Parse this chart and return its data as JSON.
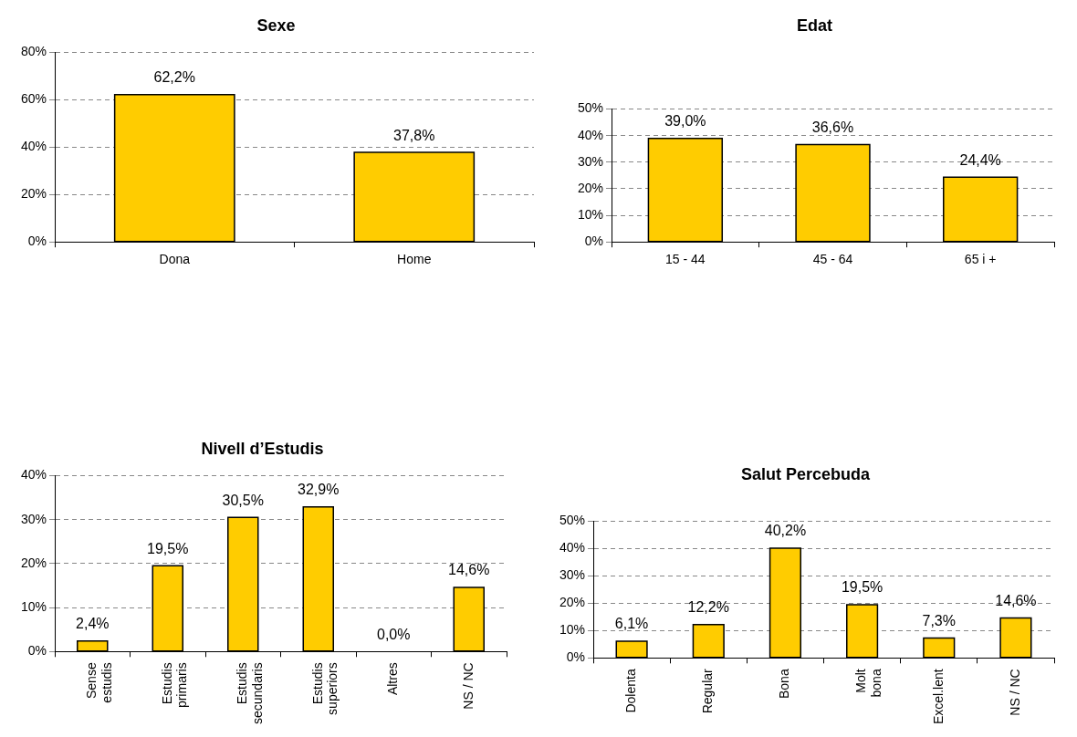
{
  "chart_data": [
    {
      "type": "bar",
      "title": "Sexe",
      "categories": [
        "Dona",
        "Home"
      ],
      "values": [
        62.2,
        37.8
      ],
      "color": "#ffcc00",
      "value_labels": [
        "62,2%",
        "37,8%"
      ],
      "ylim": [
        0,
        80
      ],
      "yticks": [
        {
          "value": 0,
          "label": "0%"
        },
        {
          "value": 20,
          "label": "20%"
        },
        {
          "value": 40,
          "label": "40%"
        },
        {
          "value": 60,
          "label": "60%"
        },
        {
          "value": 80,
          "label": "80%"
        }
      ],
      "grid": "y"
    },
    {
      "type": "bar",
      "title": "Edat",
      "categories": [
        "15 - 44",
        "45 - 64",
        "65 i +"
      ],
      "values": [
        39.0,
        36.6,
        24.4
      ],
      "color": "#ffcc00",
      "value_labels": [
        "39,0%",
        "36,6%",
        "24,4%"
      ],
      "ylim": [
        0,
        50
      ],
      "yticks": [
        {
          "value": 0,
          "label": "0%"
        },
        {
          "value": 10,
          "label": "10%"
        },
        {
          "value": 20,
          "label": "20%"
        },
        {
          "value": 30,
          "label": "30%"
        },
        {
          "value": 40,
          "label": "40%"
        },
        {
          "value": 50,
          "label": "50%"
        }
      ],
      "grid": "y"
    },
    {
      "type": "bar",
      "title": "Nivell d’Estudis",
      "categories": [
        "Sense\nestudis",
        "Estudis\nprimaris",
        "Estudis\nsecundaris",
        "Estudis\nsuperiors",
        "Altres",
        "NS / NC"
      ],
      "values": [
        2.4,
        19.5,
        30.5,
        32.9,
        0.0,
        14.6
      ],
      "color": "#ffcc00",
      "value_labels": [
        "2,4%",
        "19,5%",
        "30,5%",
        "32,9%",
        "0,0%",
        "14,6%"
      ],
      "ylim": [
        0,
        40
      ],
      "yticks": [
        {
          "value": 0,
          "label": "0%"
        },
        {
          "value": 10,
          "label": "10%"
        },
        {
          "value": 20,
          "label": "20%"
        },
        {
          "value": 30,
          "label": "30%"
        },
        {
          "value": 40,
          "label": "40%"
        }
      ],
      "grid": "y"
    },
    {
      "type": "bar",
      "title": "Salut Percebuda",
      "categories": [
        "Dolenta",
        "Regular",
        "Bona",
        "Molt\nbona",
        "Excel.lent",
        "NS / NC"
      ],
      "values": [
        6.1,
        12.2,
        40.2,
        19.5,
        7.3,
        14.6
      ],
      "color": "#ffcc00",
      "value_labels": [
        "6,1%",
        "12,2%",
        "40,2%",
        "19,5%",
        "7,3%",
        "14,6%"
      ],
      "ylim": [
        0,
        50
      ],
      "yticks": [
        {
          "value": 0,
          "label": "0%"
        },
        {
          "value": 10,
          "label": "10%"
        },
        {
          "value": 20,
          "label": "20%"
        },
        {
          "value": 30,
          "label": "30%"
        },
        {
          "value": 40,
          "label": "40%"
        },
        {
          "value": 50,
          "label": "50%"
        }
      ],
      "grid": "y"
    }
  ]
}
